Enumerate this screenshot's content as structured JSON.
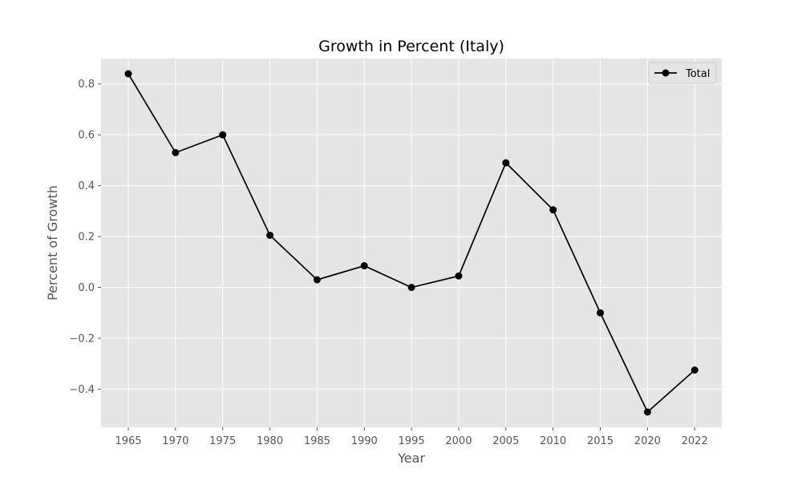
{
  "chart_data": {
    "type": "line",
    "title": "Growth in Percent (Italy)",
    "xlabel": "Year",
    "ylabel": "Percent of Growth",
    "categories": [
      "1965",
      "1970",
      "1975",
      "1980",
      "1985",
      "1990",
      "1995",
      "2000",
      "2005",
      "2010",
      "2015",
      "2020",
      "2022"
    ],
    "series": [
      {
        "name": "Total",
        "values": [
          0.84,
          0.53,
          0.6,
          0.205,
          0.03,
          0.085,
          0.0,
          0.045,
          0.49,
          0.305,
          -0.1,
          -0.49,
          -0.325
        ]
      }
    ],
    "ylim": [
      -0.55,
      0.9
    ],
    "yticks": [
      "−0.4",
      "−0.2",
      "0.0",
      "0.2",
      "0.4",
      "0.6",
      "0.8"
    ],
    "ytick_values": [
      -0.4,
      -0.2,
      0.0,
      0.2,
      0.4,
      0.6,
      0.8
    ],
    "grid": true,
    "legend_position": "top-right",
    "colors": {
      "plot_background": "#e5e5e5",
      "grid": "#ffffff",
      "line": "#000000",
      "text": "#555555"
    }
  }
}
